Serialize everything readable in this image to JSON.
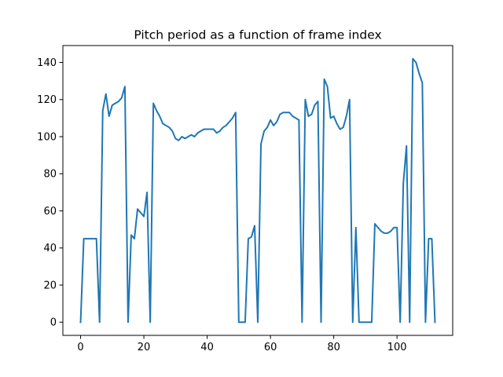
{
  "chart_data": {
    "type": "line",
    "title": "Pitch period as a function of frame index",
    "xlabel": "",
    "ylabel": "",
    "xlim": [
      -5.6,
      117.6
    ],
    "ylim": [
      -7.1,
      149.1
    ],
    "x_ticks": [
      0,
      20,
      40,
      60,
      80,
      100
    ],
    "y_ticks": [
      0,
      20,
      40,
      60,
      80,
      100,
      120,
      140
    ],
    "grid": false,
    "legend": "none",
    "series": [
      {
        "color": "#1f77b4",
        "x": [
          0,
          1,
          2,
          3,
          4,
          5,
          6,
          7,
          8,
          9,
          10,
          11,
          12,
          13,
          14,
          15,
          16,
          17,
          18,
          19,
          20,
          21,
          22,
          23,
          24,
          25,
          26,
          27,
          28,
          29,
          30,
          31,
          32,
          33,
          34,
          35,
          36,
          37,
          38,
          39,
          40,
          41,
          42,
          43,
          44,
          45,
          46,
          47,
          48,
          49,
          50,
          51,
          52,
          53,
          54,
          55,
          56,
          57,
          58,
          59,
          60,
          61,
          62,
          63,
          64,
          65,
          66,
          67,
          68,
          69,
          70,
          71,
          72,
          73,
          74,
          75,
          76,
          77,
          78,
          79,
          80,
          81,
          82,
          83,
          84,
          85,
          86,
          87,
          88,
          89,
          90,
          91,
          92,
          93,
          94,
          95,
          96,
          97,
          98,
          99,
          100,
          101,
          102,
          103,
          104,
          105,
          106,
          107,
          108,
          109,
          110,
          111,
          112
        ],
        "y": [
          0,
          45,
          45,
          45,
          45,
          45,
          0,
          114,
          123,
          111,
          117,
          118,
          119,
          121,
          127,
          0,
          47,
          45,
          61,
          59,
          57,
          70,
          0,
          118,
          114,
          111,
          107,
          106,
          105,
          103,
          99,
          98,
          100,
          99,
          100,
          101,
          100,
          102,
          103,
          104,
          104,
          104,
          104,
          102,
          103,
          105,
          106,
          108,
          110,
          113,
          0,
          0,
          0,
          45,
          46,
          52,
          0,
          96,
          103,
          105,
          109,
          106,
          108,
          112,
          113,
          113,
          113,
          111,
          110,
          109,
          0,
          120,
          111,
          112,
          117,
          119,
          0,
          131,
          127,
          110,
          111,
          107,
          104,
          105,
          111,
          120,
          0,
          51,
          0,
          0,
          0,
          0,
          0,
          53,
          51,
          49,
          48,
          48,
          49,
          51,
          51,
          0,
          75,
          95,
          0,
          142,
          140,
          134,
          129,
          0,
          45,
          45,
          0
        ]
      }
    ]
  }
}
